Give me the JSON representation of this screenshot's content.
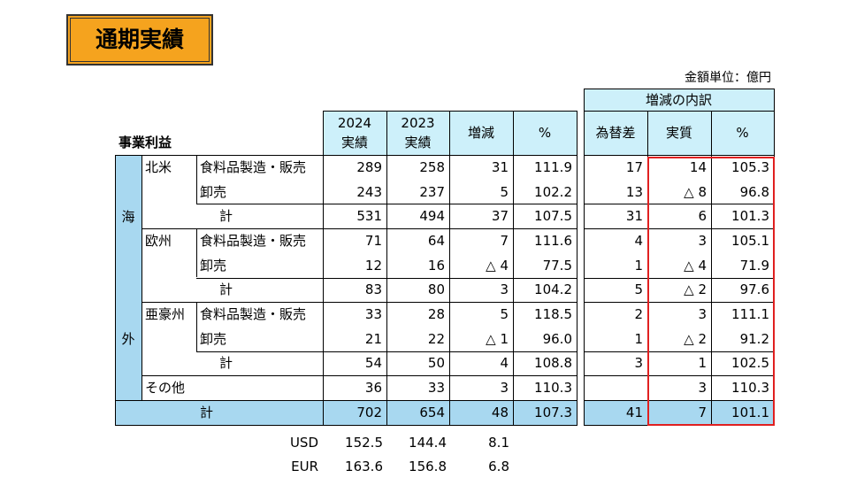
{
  "title": "通期実績",
  "unit": "金額単位：億円",
  "table": {
    "section_label": "事業利益",
    "columns": [
      [
        "2024",
        "実績"
      ],
      [
        "2023",
        "実績"
      ],
      [
        "増減"
      ],
      [
        "%"
      ]
    ],
    "breakdown_label": "増減の内訳",
    "breakdown_columns": [
      "為替差",
      "実質",
      "%"
    ],
    "side_label": [
      "海",
      "外"
    ],
    "rows": [
      {
        "region": "北米",
        "segment": "食料品製造・販売",
        "values": [
          "289",
          "258",
          "31",
          "111.9"
        ],
        "breakdown": [
          "17",
          "14",
          "105.3"
        ]
      },
      {
        "segment": "卸売",
        "values": [
          "243",
          "237",
          "5",
          "102.2"
        ],
        "breakdown": [
          "13",
          "△ 8",
          "96.8"
        ]
      },
      {
        "segment": "計",
        "values": [
          "531",
          "494",
          "37",
          "107.5"
        ],
        "breakdown": [
          "31",
          "6",
          "101.3"
        ]
      },
      {
        "region": "欧州",
        "segment": "食料品製造・販売",
        "values": [
          "71",
          "64",
          "7",
          "111.6"
        ],
        "breakdown": [
          "4",
          "3",
          "105.1"
        ]
      },
      {
        "segment": "卸売",
        "values": [
          "12",
          "16",
          "△ 4",
          "77.5"
        ],
        "breakdown": [
          "1",
          "△ 4",
          "71.9"
        ]
      },
      {
        "segment": "計",
        "values": [
          "83",
          "80",
          "3",
          "104.2"
        ],
        "breakdown": [
          "5",
          "△ 2",
          "97.6"
        ]
      },
      {
        "region": "亜豪州",
        "segment": "食料品製造・販売",
        "values": [
          "33",
          "28",
          "5",
          "118.5"
        ],
        "breakdown": [
          "2",
          "3",
          "111.1"
        ]
      },
      {
        "segment": "卸売",
        "values": [
          "21",
          "22",
          "△ 1",
          "96.0"
        ],
        "breakdown": [
          "1",
          "△ 2",
          "91.2"
        ]
      },
      {
        "segment": "計",
        "values": [
          "54",
          "50",
          "4",
          "108.8"
        ],
        "breakdown": [
          "3",
          "1",
          "102.5"
        ]
      },
      {
        "region": "その他",
        "values": [
          "36",
          "33",
          "3",
          "110.3"
        ],
        "breakdown": [
          null,
          "3",
          "110.3"
        ]
      }
    ],
    "total": {
      "label": "計",
      "values": [
        "702",
        "654",
        "48",
        "107.3"
      ],
      "breakdown": [
        "41",
        "7",
        "101.1"
      ]
    }
  },
  "fx_rates": [
    {
      "currency": "USD",
      "values": [
        "152.5",
        "144.4",
        "8.1"
      ]
    },
    {
      "currency": "EUR",
      "values": [
        "163.6",
        "156.8",
        "6.8"
      ]
    }
  ]
}
